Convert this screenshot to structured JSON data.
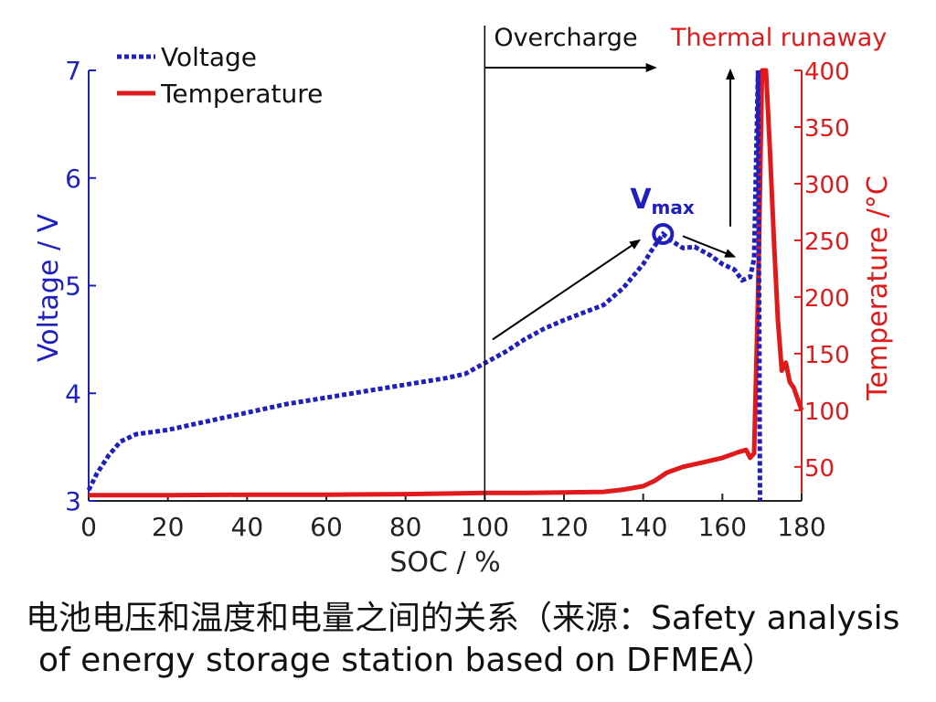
{
  "colors": {
    "voltage": "#1f1fbf",
    "temperature": "#e01a1a",
    "axis": "#222222",
    "arrow": "#000000"
  },
  "chart_data": {
    "type": "line",
    "xlabel": "SOC / %",
    "ylabel_left": "Voltage / V",
    "ylabel_right": "Temperature /°C",
    "xlim": [
      0,
      180
    ],
    "ylim_left": [
      3,
      7
    ],
    "ylim_right": [
      20,
      400
    ],
    "x_ticks": [
      "0",
      "20",
      "40",
      "60",
      "80",
      "100",
      "120",
      "140",
      "160",
      "180"
    ],
    "y_left_ticks": [
      "3",
      "4",
      "5",
      "6",
      "7"
    ],
    "y_right_ticks": [
      "50",
      "100",
      "150",
      "200",
      "250",
      "300",
      "350",
      "400"
    ],
    "grid": false,
    "legend": {
      "position": "top-left",
      "entries": [
        {
          "name": "Voltage",
          "style": "dotted",
          "color": "#1f1fbf"
        },
        {
          "name": "Temperature",
          "style": "solid",
          "color": "#e01a1a"
        }
      ]
    },
    "series": [
      {
        "name": "Voltage",
        "axis": "left",
        "x": [
          0,
          2,
          5,
          8,
          12,
          20,
          30,
          40,
          50,
          60,
          70,
          80,
          90,
          95,
          100,
          105,
          110,
          115,
          120,
          125,
          130,
          135,
          140,
          142,
          145,
          147,
          150,
          153,
          157,
          160,
          163,
          165,
          167,
          168,
          169,
          169.5
        ],
        "y": [
          3.1,
          3.25,
          3.42,
          3.55,
          3.62,
          3.66,
          3.74,
          3.82,
          3.9,
          3.96,
          4.02,
          4.08,
          4.14,
          4.18,
          4.28,
          4.38,
          4.5,
          4.6,
          4.68,
          4.75,
          4.82,
          4.98,
          5.2,
          5.32,
          5.48,
          5.42,
          5.35,
          5.36,
          5.28,
          5.2,
          5.15,
          5.05,
          5.08,
          5.25,
          7.0,
          3.0
        ]
      },
      {
        "name": "Temperature",
        "axis": "right",
        "x": [
          0,
          20,
          40,
          60,
          80,
          100,
          110,
          120,
          130,
          135,
          140,
          143,
          146,
          150,
          155,
          160,
          164,
          166,
          167,
          168,
          169,
          170,
          171,
          172,
          173,
          174,
          175,
          176,
          177,
          178,
          180
        ],
        "y": [
          25,
          25,
          25.5,
          25.5,
          26,
          27,
          27,
          27.5,
          28,
          30,
          33,
          38,
          45,
          50,
          54,
          58,
          63,
          65,
          58,
          62,
          200,
          400,
          400,
          330,
          250,
          180,
          135,
          142,
          125,
          120,
          100
        ]
      }
    ],
    "annotations": [
      {
        "text": "Overcharge",
        "x": 100,
        "type": "vline-arrow",
        "arrow_to_x": 143
      },
      {
        "text": "Thermal runaway",
        "x": 162,
        "type": "up-arrow",
        "arrow_from_v": 5.55,
        "arrow_to_v": 7.0
      },
      {
        "text": "V",
        "subscript": "max",
        "x": 145,
        "y": 5.48,
        "marker": "circle"
      },
      {
        "type": "arrow",
        "from": [
          102,
          4.5
        ],
        "to": [
          139,
          5.42
        ]
      },
      {
        "type": "arrow",
        "from": [
          150,
          5.46
        ],
        "to": [
          163,
          5.27
        ]
      }
    ]
  },
  "caption": {
    "line1": "电池电压和温度和电量之间的关系（来源：Safety analysis",
    "line2": "of energy storage station based on DFMEA）"
  }
}
